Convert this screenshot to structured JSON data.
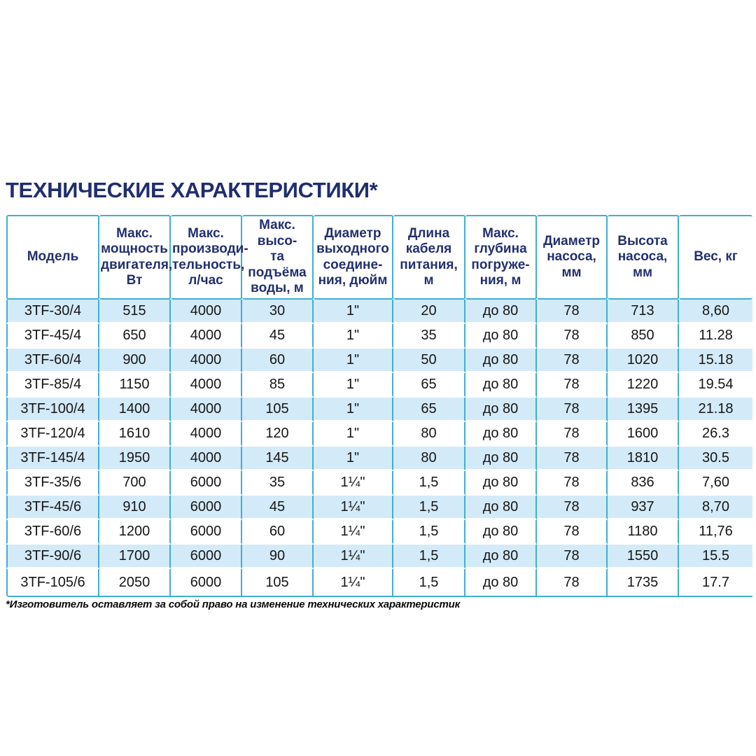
{
  "page": {
    "title": "ТЕХНИЧЕСКИЕ ХАРАКТЕРИСТИКИ*",
    "footnote": "*Изготовитель оставляет за собой право на изменение технических характеристик"
  },
  "colors": {
    "title_navy": "#1f2e6e",
    "header_navy": "#22306e",
    "border_cyan": "#3fafd1",
    "row_stripe_blue": "#d3eaf8",
    "data_text": "#161616"
  },
  "table": {
    "headers": [
      [
        "Модель"
      ],
      [
        "Макс.",
        "мощность",
        "двигателя,",
        "Вт"
      ],
      [
        "Макс.",
        "производи-",
        "тельность,",
        "л/час"
      ],
      [
        "Макс. высо-",
        "та подъёма",
        "воды, м"
      ],
      [
        "Диаметр",
        "выходного",
        "соедине-",
        "ния, дюйм"
      ],
      [
        "Длина",
        "кабеля",
        "питания,",
        "м"
      ],
      [
        "Макс.",
        "глубина",
        "погруже-",
        "ния, м"
      ],
      [
        "Диаметр",
        "насоса, мм"
      ],
      [
        "Высота",
        "насоса, мм"
      ],
      [
        "Вес, кг"
      ]
    ],
    "rows": [
      [
        "3TF-30/4",
        "515",
        "4000",
        "30",
        "1\"",
        "20",
        "до 80",
        "78",
        "713",
        "8,60"
      ],
      [
        "3TF-45/4",
        "650",
        "4000",
        "45",
        "1\"",
        "35",
        "до 80",
        "78",
        "850",
        "11.28"
      ],
      [
        "3TF-60/4",
        "900",
        "4000",
        "60",
        "1\"",
        "50",
        "до 80",
        "78",
        "1020",
        "15.18"
      ],
      [
        "3TF-85/4",
        "1150",
        "4000",
        "85",
        "1\"",
        "65",
        "до 80",
        "78",
        "1220",
        "19.54"
      ],
      [
        "3TF-100/4",
        "1400",
        "4000",
        "105",
        "1\"",
        "65",
        "до 80",
        "78",
        "1395",
        "21.18"
      ],
      [
        "3TF-120/4",
        "1610",
        "4000",
        "120",
        "1\"",
        "80",
        "до 80",
        "78",
        "1600",
        "26.3"
      ],
      [
        "3TF-145/4",
        "1950",
        "4000",
        "145",
        "1\"",
        "80",
        "до 80",
        "78",
        "1810",
        "30.5"
      ],
      [
        "3TF-35/6",
        "700",
        "6000",
        "35",
        "1¼\"",
        "1,5",
        "до 80",
        "78",
        "836",
        "7,60"
      ],
      [
        "3TF-45/6",
        "910",
        "6000",
        "45",
        "1¼\"",
        "1,5",
        "до 80",
        "78",
        "937",
        "8,70"
      ],
      [
        "3TF-60/6",
        "1200",
        "6000",
        "60",
        "1¼\"",
        "1,5",
        "до 80",
        "78",
        "1180",
        "11,76"
      ],
      [
        "3TF-90/6",
        "1700",
        "6000",
        "90",
        "1¼\"",
        "1,5",
        "до 80",
        "78",
        "1550",
        "15.5"
      ],
      [
        "3TF-105/6",
        "2050",
        "6000",
        "105",
        "1¼\"",
        "1,5",
        "до 80",
        "78",
        "1735",
        "17.7"
      ]
    ]
  }
}
